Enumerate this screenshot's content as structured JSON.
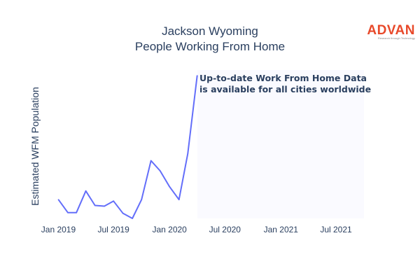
{
  "chart_data": {
    "type": "line",
    "title_lines": [
      "Jackson Wyoming",
      "People Working From Home"
    ],
    "ylabel": "Estimated WFM Population",
    "xlabel": "",
    "x_tick_labels": [
      "Jan 2019",
      "Jul 2019",
      "Jan 2020",
      "Jul 2020",
      "Jan 2021",
      "Jul 2021"
    ],
    "x_range": [
      "2018-12-01",
      "2021-10-01"
    ],
    "y_ticks_shown": false,
    "grid": false,
    "series": [
      {
        "color": "#636efa",
        "x": [
          "2019-01",
          "2019-02",
          "2019-03",
          "2019-04",
          "2019-05",
          "2019-06",
          "2019-07",
          "2019-08",
          "2019-09",
          "2019-10",
          "2019-11",
          "2019-12",
          "2020-01",
          "2020-02",
          "2020-03",
          "2020-04"
        ],
        "y": [
          14,
          5,
          5,
          20,
          10,
          9.5,
          13,
          4.5,
          1,
          14,
          41,
          34,
          23,
          14,
          46,
          100
        ]
      }
    ],
    "annotation": [
      "Up-to-date Work From Home Data",
      "is available for all cities worldwide"
    ],
    "shaded_region_color": "#fafaff"
  },
  "logo": {
    "text": "ADVAN",
    "tagline": "Research through Technology",
    "color": "#e8492a"
  }
}
